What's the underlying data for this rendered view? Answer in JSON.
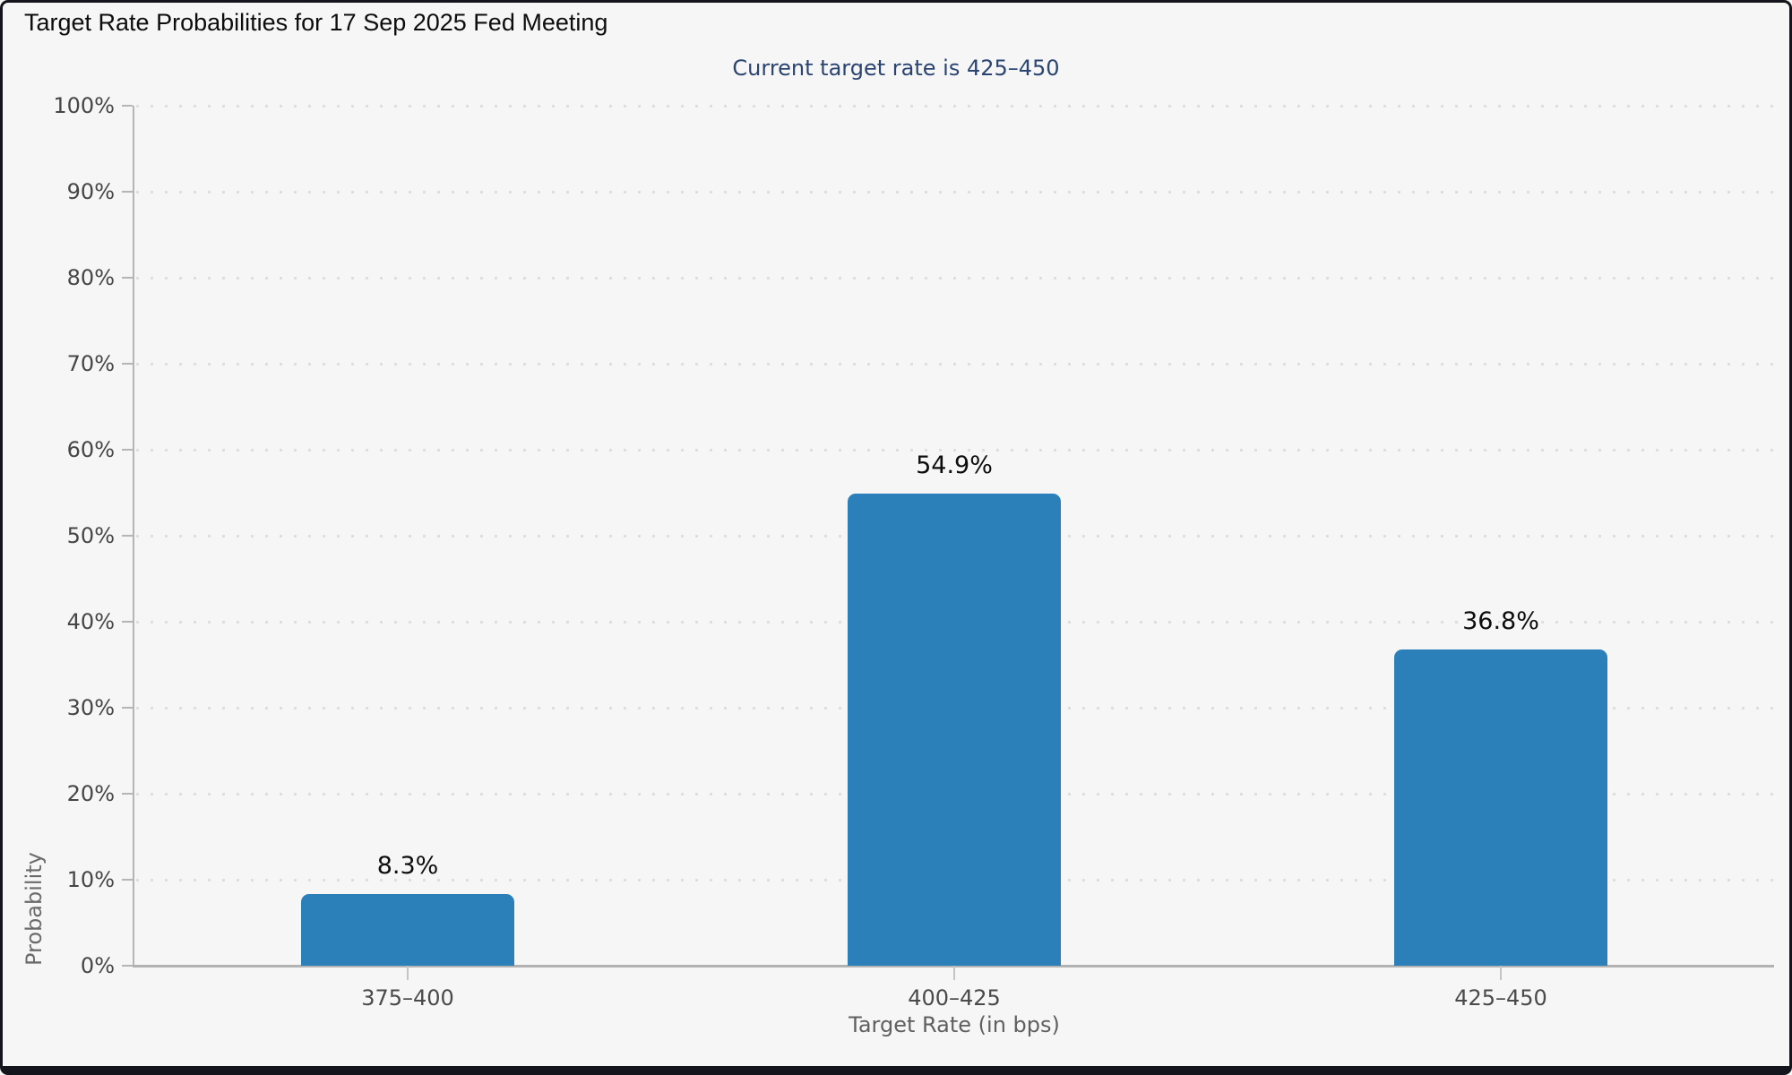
{
  "chart_data": {
    "type": "bar",
    "title": "Target Rate Probabilities for 17 Sep 2025 Fed Meeting",
    "subtitle": "Current target rate is 425–450",
    "categories": [
      "375–400",
      "400–425",
      "425–450"
    ],
    "values": [
      8.3,
      54.9,
      36.8
    ],
    "value_labels": [
      "8.3%",
      "54.9%",
      "36.8%"
    ],
    "xlabel": "Target Rate (in bps)",
    "ylabel": "Probability",
    "ylim": [
      0,
      100
    ],
    "ytick_step": 10,
    "ytick_labels": [
      "0%",
      "10%",
      "20%",
      "30%",
      "40%",
      "50%",
      "60%",
      "70%",
      "80%",
      "90%",
      "100%"
    ],
    "grid": {
      "horizontal": true,
      "style": "dotted"
    },
    "legend_position": "none",
    "bar_color": "#2b80b9"
  },
  "colors": {
    "background": "#f6f6f7",
    "bar": "#2b80b9",
    "title_text": "#0d0d0d",
    "subtitle_text": "#2b4470",
    "tick_label": "#464646",
    "axis_title": "#606060",
    "gridline": "#dedede",
    "axis_line": "#b2b2b2",
    "frame": "#14141c"
  }
}
